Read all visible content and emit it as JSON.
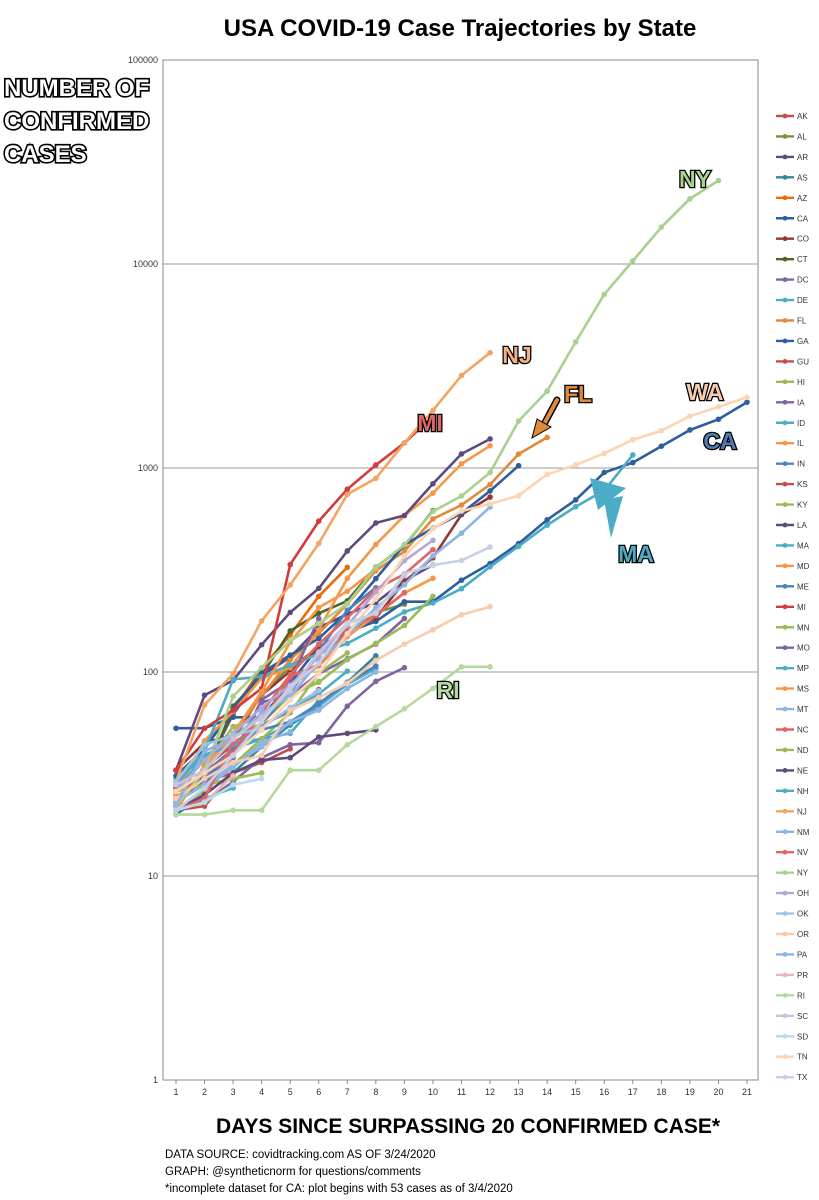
{
  "chart_data": {
    "type": "line",
    "title": "USA COVID-19 Case Trajectories by State",
    "ylabel": [
      "NUMBER OF",
      "CONFIRMED",
      "CASES"
    ],
    "xlabel": "DAYS SINCE SURPASSING 20 CONFIRMED CASE*",
    "y_scale": "log",
    "ylim": [
      1,
      100000
    ],
    "y_ticks": [
      "1",
      "10",
      "100",
      "1000",
      "10000",
      "100000"
    ],
    "x_ticks": [
      "1",
      "2",
      "3",
      "4",
      "5",
      "6",
      "7",
      "8",
      "9",
      "10",
      "11",
      "12",
      "13",
      "14",
      "15",
      "16",
      "17",
      "18",
      "19",
      "20",
      "21"
    ],
    "grid": true,
    "legend_position": "right",
    "notes": [
      "DATA SOURCE: covidtracking.com AS OF 3/24/2020",
      "GRAPH: @syntheticnorm for questions/comments",
      "*incomplete dataset for CA: plot begins with 53 cases as of 3/4/2020"
    ],
    "annotations": [
      {
        "text": "NY",
        "color": "#a9d18e"
      },
      {
        "text": "NJ",
        "color": "#f4b183"
      },
      {
        "text": "FL",
        "color": "#e08a3c"
      },
      {
        "text": "MI",
        "color": "#e06666"
      },
      {
        "text": "WA",
        "color": "#f8cbad"
      },
      {
        "text": "CA",
        "color": "#4f7db3"
      },
      {
        "text": "MA",
        "color": "#4bacc6"
      },
      {
        "text": "RI",
        "color": "#b5d99c"
      }
    ],
    "series": [
      {
        "name": "AK",
        "color": "#c0504d",
        "values": [
          21,
          22,
          32,
          36,
          42
        ]
      },
      {
        "name": "AL",
        "color": "#76923c",
        "values": [
          29,
          39,
          46,
          78,
          106,
          131,
          157,
          196,
          215
        ]
      },
      {
        "name": "AR",
        "color": "#604a7b",
        "values": [
          22,
          33,
          62,
          96,
          118,
          165,
          192,
          219,
          280,
          335
        ]
      },
      {
        "name": "AS",
        "color": "#31859c",
        "values": [
          20,
          25,
          32,
          43,
          55,
          68,
          89,
          120
        ]
      },
      {
        "name": "AZ",
        "color": "#e46c0a",
        "values": [
          27,
          45,
          65,
          104,
          152,
          235,
          326
        ]
      },
      {
        "name": "CA",
        "color": "#2e5e9e",
        "values": [
          53,
          53,
          60,
          60,
          88,
          133,
          157,
          177,
          221,
          221,
          282,
          340,
          426,
          557,
          698,
          951,
          1063,
          1279,
          1536,
          1733,
          2102
        ]
      },
      {
        "name": "CO",
        "color": "#943634",
        "values": [
          33,
          45,
          49,
          77,
          101,
          131,
          160,
          184,
          277,
          363,
          591,
          720
        ]
      },
      {
        "name": "CT",
        "color": "#4f6228",
        "values": [
          24,
          30,
          68,
          96,
          159,
          194,
          223,
          327,
          415,
          618
        ]
      },
      {
        "name": "DC",
        "color": "#8064a2",
        "values": [
          22,
          31,
          40,
          71,
          77,
          98,
          116,
          137,
          183
        ]
      },
      {
        "name": "DE",
        "color": "#4bacc6",
        "values": [
          30,
          38,
          45,
          47,
          56,
          68,
          87,
          104
        ]
      },
      {
        "name": "FL",
        "color": "#e08a3c",
        "values": [
          26,
          32,
          50,
          76,
          115,
          155,
          216,
          314,
          390,
          563,
          658,
          830,
          1171,
          1412
        ]
      },
      {
        "name": "GA",
        "color": "#2e5e9e",
        "values": [
          31,
          42,
          66,
          99,
          121,
          146,
          197,
          287,
          420,
          507,
          600,
          772,
          1026
        ]
      },
      {
        "name": "GU",
        "color": "#c0504d",
        "values": [
          27,
          29,
          32
        ]
      },
      {
        "name": "HI",
        "color": "#9bbb59",
        "values": [
          26,
          37,
          48,
          56,
          77,
          90
        ]
      },
      {
        "name": "IA",
        "color": "#8064a2",
        "values": [
          22,
          23,
          29,
          38,
          44,
          45,
          68,
          90,
          105
        ]
      },
      {
        "name": "ID",
        "color": "#4bacc6",
        "values": [
          23,
          31,
          42,
          47,
          50,
          73
        ]
      },
      {
        "name": "IL",
        "color": "#f79646",
        "values": [
          25,
          46,
          64,
          93,
          105,
          161,
          288,
          422,
          585,
          753,
          1049,
          1285
        ]
      },
      {
        "name": "IN",
        "color": "#4f81bd",
        "values": [
          24,
          30,
          39,
          56,
          79,
          126,
          201,
          259
        ]
      },
      {
        "name": "KS",
        "color": "#c0504d",
        "values": [
          22,
          34,
          44,
          55,
          64,
          82
        ]
      },
      {
        "name": "KY",
        "color": "#9bbb59",
        "values": [
          21,
          26,
          35,
          47,
          63,
          99,
          124
        ]
      },
      {
        "name": "LA",
        "color": "#604a7b",
        "values": [
          33,
          77,
          91,
          136,
          196,
          257,
          392,
          538,
          585,
          837,
          1172,
          1388
        ]
      },
      {
        "name": "MA",
        "color": "#4bacc6",
        "values": [
          28,
          41,
          92,
          95,
          108,
          123,
          138,
          164,
          197,
          218,
          256,
          328,
          413,
          525,
          646,
          777,
          1159
        ]
      },
      {
        "name": "MD",
        "color": "#f79646",
        "values": [
          26,
          32,
          41,
          57,
          85,
          107,
          149,
          190,
          244,
          288
        ]
      },
      {
        "name": "ME",
        "color": "#4f81bd",
        "values": [
          23,
          32,
          42,
          52,
          57,
          70,
          89,
          107
        ]
      },
      {
        "name": "MI",
        "color": "#d23c3c",
        "values": [
          33,
          53,
          65,
          83,
          336,
          549,
          787,
          1035,
          1328,
          1791
        ]
      },
      {
        "name": "MN",
        "color": "#9bbb59",
        "values": [
          21,
          35,
          54,
          60,
          77,
          89,
          115,
          138,
          169,
          235
        ]
      },
      {
        "name": "MO",
        "color": "#8064a2",
        "values": [
          24,
          29,
          38,
          73,
          90,
          183
        ]
      },
      {
        "name": "MP",
        "color": "#4bacc6",
        "values": [
          22,
          24,
          27
        ]
      },
      {
        "name": "MS",
        "color": "#f79646",
        "values": [
          21,
          34,
          50,
          80,
          140,
          207,
          249,
          320
        ]
      },
      {
        "name": "MT",
        "color": "#8eb4e3",
        "values": [
          21,
          27,
          34,
          45,
          51
        ]
      },
      {
        "name": "NC",
        "color": "#e06666",
        "values": [
          24,
          32,
          40,
          63,
          97,
          137,
          184,
          255,
          302,
          398
        ]
      },
      {
        "name": "ND",
        "color": "#9bbb59",
        "values": [
          26,
          28,
          30,
          32
        ]
      },
      {
        "name": "NE",
        "color": "#604a7b",
        "values": [
          21,
          25,
          32,
          37,
          38,
          48,
          50,
          52
        ]
      },
      {
        "name": "NH",
        "color": "#4bacc6",
        "values": [
          26,
          39,
          44,
          55,
          65,
          78,
          101
        ]
      },
      {
        "name": "NJ",
        "color": "#f4a462",
        "values": [
          29,
          69,
          98,
          178,
          267,
          427,
          742,
          890,
          1327,
          1914,
          2844,
          3675
        ]
      },
      {
        "name": "NM",
        "color": "#8eb4e3",
        "values": [
          23,
          28,
          35,
          43,
          57,
          65,
          83,
          100
        ]
      },
      {
        "name": "NV",
        "color": "#e06666",
        "values": [
          21,
          24,
          45,
          55,
          95,
          109,
          161,
          190,
          245
        ]
      },
      {
        "name": "NY",
        "color": "#a9d18e",
        "values": [
          22,
          33,
          76,
          105,
          142,
          173,
          216,
          326,
          420,
          613,
          729,
          950,
          1700,
          2382,
          4152,
          7102,
          10356,
          15168,
          20875,
          25665
        ]
      },
      {
        "name": "OH",
        "color": "#b4a7d6",
        "values": [
          26,
          37,
          50,
          67,
          86,
          119,
          169,
          247,
          351,
          442
        ]
      },
      {
        "name": "OK",
        "color": "#9dc3e6",
        "values": [
          29,
          44,
          49,
          53,
          67,
          81
        ]
      },
      {
        "name": "OR",
        "color": "#f8cbad",
        "values": [
          24,
          30,
          36,
          39,
          65,
          75,
          88,
          114,
          137,
          161,
          191,
          209
        ]
      },
      {
        "name": "PA",
        "color": "#8eb4e3",
        "values": [
          22,
          41,
          47,
          63,
          76,
          112,
          152,
          206,
          268,
          371,
          479,
          644
        ]
      },
      {
        "name": "PR",
        "color": "#e6b8b7",
        "values": [
          21,
          23,
          31
        ]
      },
      {
        "name": "RI",
        "color": "#b5d99c",
        "values": [
          20,
          20,
          21,
          21,
          33,
          33,
          44,
          54,
          66,
          83,
          106,
          106
        ]
      },
      {
        "name": "SC",
        "color": "#ccc0da",
        "values": [
          28,
          33,
          47,
          60,
          81,
          125,
          173,
          195,
          298
        ]
      },
      {
        "name": "SD",
        "color": "#b7dee8",
        "values": [
          21,
          23,
          28,
          30
        ]
      },
      {
        "name": "TN",
        "color": "#fbd4b4",
        "values": [
          26,
          32,
          39,
          52,
          73,
          98,
          154,
          228,
          371,
          505,
          615,
          667,
          732,
          931,
          1035,
          1180,
          1376,
          1524,
          1796,
          1996,
          2221
        ]
      },
      {
        "name": "TX",
        "color": "#c5d0e6",
        "values": [
          21,
          27,
          39,
          57,
          85,
          110,
          173,
          194,
          304,
          334,
          352,
          410
        ]
      }
    ]
  }
}
